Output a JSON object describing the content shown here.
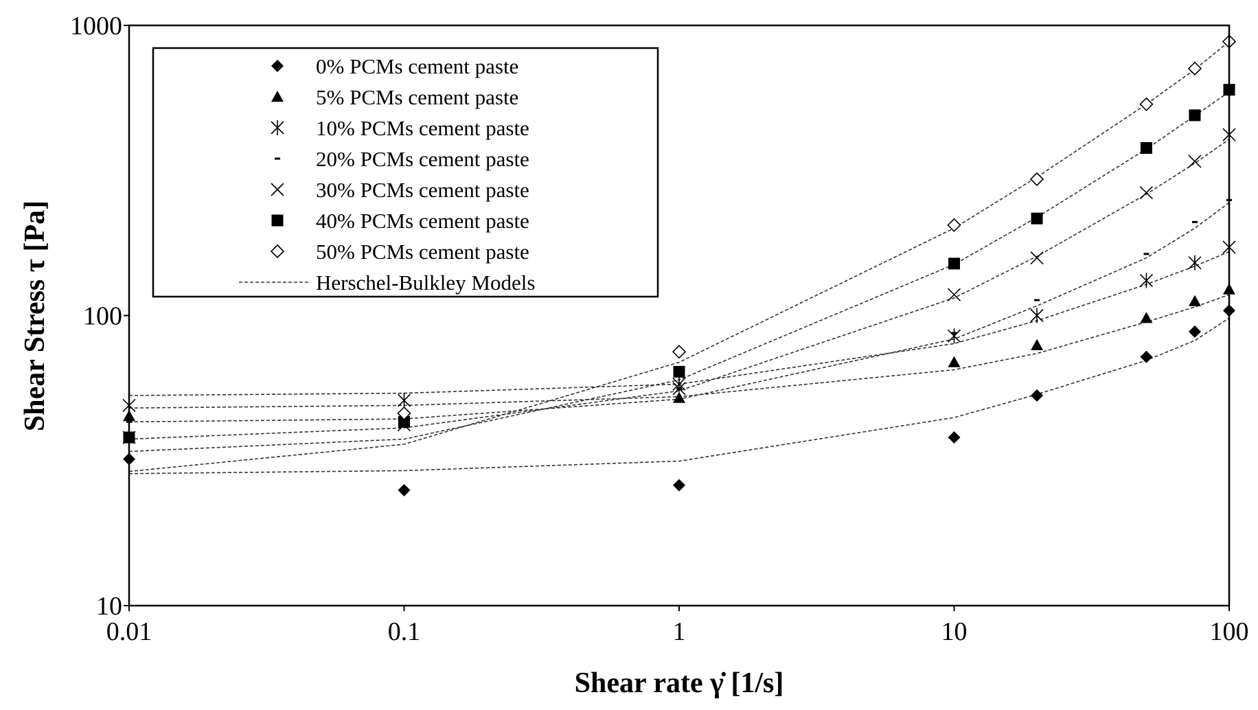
{
  "chart_data": {
    "type": "scatter",
    "x_scale": "log",
    "y_scale": "log",
    "xlabel": "Shear rate  γ̇ [1/s]",
    "ylabel": "Shear Stress τ [Pa]",
    "xlim": [
      0.01,
      100
    ],
    "ylim": [
      10,
      1000
    ],
    "x_ticks": [
      "0.01",
      "0.1",
      "1",
      "10",
      "100"
    ],
    "y_ticks": [
      "10",
      "100",
      "1000"
    ],
    "grid": false,
    "legend_position": "top-left",
    "series": [
      {
        "name": "0% PCMs cement paste",
        "marker": "diamond-filled",
        "x": [
          0.01,
          0.1,
          1,
          10,
          20,
          50,
          75,
          100
        ],
        "y": [
          32,
          25,
          26,
          38,
          53,
          72,
          88,
          104
        ],
        "fit_x": [
          0.01,
          0.1,
          1,
          10,
          20,
          50,
          75,
          100
        ],
        "fit_y": [
          28.5,
          29.2,
          31.5,
          44.5,
          53.5,
          70,
          82,
          98
        ]
      },
      {
        "name": "5% PCMs cement paste",
        "marker": "triangle-filled",
        "x": [
          0.01,
          0.1,
          1,
          10,
          20,
          50,
          75,
          100
        ],
        "y": [
          45,
          44,
          52,
          69,
          79,
          98,
          112,
          123
        ],
        "fit_x": [
          0.01,
          0.1,
          1,
          10,
          20,
          50,
          75,
          100
        ],
        "fit_y": [
          48,
          49,
          52.5,
          65,
          74,
          95,
          107,
          118
        ]
      },
      {
        "name": "10% PCMs cement paste",
        "marker": "asterisk",
        "x": [
          0.01,
          0.1,
          1,
          10,
          20,
          50,
          75,
          100
        ],
        "y": [
          49,
          51,
          58,
          85,
          100,
          132,
          152,
          172
        ],
        "fit_x": [
          0.01,
          0.1,
          1,
          10,
          20,
          50,
          75,
          100
        ],
        "fit_y": [
          53,
          54,
          58,
          80,
          96,
          128,
          148,
          166
        ]
      },
      {
        "name": "20% PCMs cement paste",
        "marker": "dash",
        "x": [
          0.01,
          0.1,
          1,
          10,
          20,
          50,
          75,
          100
        ],
        "y": [
          43,
          45,
          56,
          87,
          113,
          163,
          210,
          250
        ],
        "fit_x": [
          0.01,
          0.1,
          1,
          10,
          20,
          50,
          75,
          100
        ],
        "fit_y": [
          43,
          44,
          51.5,
          83,
          108,
          158,
          200,
          245
        ]
      },
      {
        "name": "30% PCMs cement paste",
        "marker": "x",
        "x": [
          0.01,
          0.1,
          1,
          10,
          20,
          50,
          75,
          100
        ],
        "y": [
          38,
          42,
          56,
          118,
          158,
          265,
          340,
          420
        ],
        "fit_x": [
          0.01,
          0.1,
          1,
          10,
          20,
          50,
          75,
          100
        ],
        "fit_y": [
          37.5,
          41,
          55,
          115,
          160,
          262,
          335,
          405
        ]
      },
      {
        "name": "40% PCMs cement paste",
        "marker": "square-filled",
        "x": [
          0.01,
          0.1,
          1,
          10,
          20,
          50,
          75,
          100
        ],
        "y": [
          38,
          43,
          64,
          151,
          216,
          378,
          490,
          600
        ],
        "fit_x": [
          0.01,
          0.1,
          1,
          10,
          20,
          50,
          75,
          100
        ],
        "fit_y": [
          34,
          37.5,
          60,
          150,
          218,
          375,
          488,
          590
        ]
      },
      {
        "name": "50% PCMs cement paste",
        "marker": "diamond-open",
        "x": [
          0.1,
          1,
          10,
          20,
          50,
          75,
          100
        ],
        "y": [
          46,
          75,
          205,
          295,
          535,
          710,
          880
        ],
        "fit_x": [
          0.01,
          0.1,
          1,
          10,
          20,
          50,
          75,
          100
        ],
        "fit_y": [
          29,
          36,
          69,
          200,
          300,
          535,
          705,
          880
        ]
      }
    ],
    "fit_legend_label": "Herschel-Bulkley Models"
  }
}
